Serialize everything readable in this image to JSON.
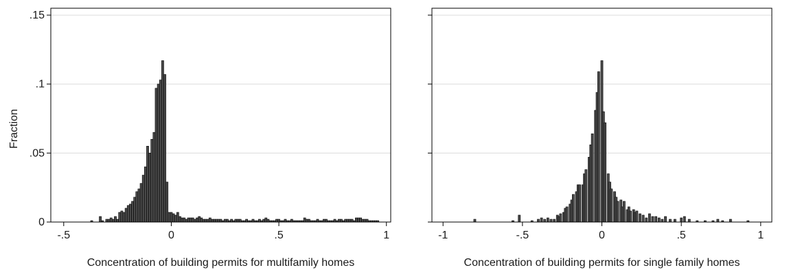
{
  "chart_data": [
    {
      "type": "bar",
      "xlabel": "Concentration of building permits for multifamily homes",
      "ylabel": "Fraction",
      "xlim": [
        -0.56,
        1.02
      ],
      "ylim": [
        0,
        0.155
      ],
      "xticks": [
        -0.5,
        0,
        0.5,
        1
      ],
      "xtick_labels": [
        "-.5",
        "0",
        ".5",
        "1"
      ],
      "yticks": [
        0,
        0.05,
        0.1,
        0.15
      ],
      "ytick_labels": [
        "0",
        ".05",
        ".1",
        ".15"
      ],
      "grid": "horizontal",
      "bin_width": 0.01,
      "bins": [
        [
          -0.37,
          0.001
        ],
        [
          -0.33,
          0.004
        ],
        [
          -0.32,
          0.001
        ],
        [
          -0.3,
          0.002
        ],
        [
          -0.29,
          0.002
        ],
        [
          -0.28,
          0.003
        ],
        [
          -0.27,
          0.002
        ],
        [
          -0.26,
          0.004
        ],
        [
          -0.25,
          0.002
        ],
        [
          -0.24,
          0.007
        ],
        [
          -0.23,
          0.008
        ],
        [
          -0.22,
          0.007
        ],
        [
          -0.21,
          0.01
        ],
        [
          -0.2,
          0.012
        ],
        [
          -0.19,
          0.013
        ],
        [
          -0.18,
          0.015
        ],
        [
          -0.17,
          0.018
        ],
        [
          -0.16,
          0.022
        ],
        [
          -0.15,
          0.024
        ],
        [
          -0.14,
          0.028
        ],
        [
          -0.13,
          0.034
        ],
        [
          -0.12,
          0.04
        ],
        [
          -0.11,
          0.055
        ],
        [
          -0.1,
          0.05
        ],
        [
          -0.09,
          0.06
        ],
        [
          -0.08,
          0.065
        ],
        [
          -0.07,
          0.097
        ],
        [
          -0.06,
          0.1
        ],
        [
          -0.05,
          0.103
        ],
        [
          -0.04,
          0.117
        ],
        [
          -0.03,
          0.107
        ],
        [
          -0.02,
          0.029
        ],
        [
          -0.01,
          0.007
        ],
        [
          0.0,
          0.007
        ],
        [
          0.01,
          0.006
        ],
        [
          0.02,
          0.005
        ],
        [
          0.03,
          0.007
        ],
        [
          0.04,
          0.004
        ],
        [
          0.05,
          0.003
        ],
        [
          0.06,
          0.003
        ],
        [
          0.07,
          0.002
        ],
        [
          0.08,
          0.003
        ],
        [
          0.09,
          0.003
        ],
        [
          0.1,
          0.003
        ],
        [
          0.11,
          0.002
        ],
        [
          0.12,
          0.003
        ],
        [
          0.13,
          0.004
        ],
        [
          0.14,
          0.003
        ],
        [
          0.15,
          0.002
        ],
        [
          0.16,
          0.002
        ],
        [
          0.17,
          0.002
        ],
        [
          0.18,
          0.003
        ],
        [
          0.19,
          0.002
        ],
        [
          0.2,
          0.002
        ],
        [
          0.21,
          0.002
        ],
        [
          0.22,
          0.002
        ],
        [
          0.23,
          0.002
        ],
        [
          0.24,
          0.001
        ],
        [
          0.25,
          0.002
        ],
        [
          0.26,
          0.002
        ],
        [
          0.27,
          0.001
        ],
        [
          0.28,
          0.002
        ],
        [
          0.29,
          0.001
        ],
        [
          0.3,
          0.002
        ],
        [
          0.31,
          0.002
        ],
        [
          0.32,
          0.002
        ],
        [
          0.33,
          0.001
        ],
        [
          0.34,
          0.001
        ],
        [
          0.35,
          0.002
        ],
        [
          0.36,
          0.001
        ],
        [
          0.37,
          0.001
        ],
        [
          0.38,
          0.002
        ],
        [
          0.39,
          0.001
        ],
        [
          0.4,
          0.001
        ],
        [
          0.41,
          0.002
        ],
        [
          0.42,
          0.001
        ],
        [
          0.43,
          0.002
        ],
        [
          0.44,
          0.003
        ],
        [
          0.45,
          0.002
        ],
        [
          0.46,
          0.001
        ],
        [
          0.47,
          0.001
        ],
        [
          0.48,
          0.001
        ],
        [
          0.49,
          0.002
        ],
        [
          0.5,
          0.002
        ],
        [
          0.51,
          0.001
        ],
        [
          0.52,
          0.001
        ],
        [
          0.53,
          0.002
        ],
        [
          0.54,
          0.001
        ],
        [
          0.55,
          0.001
        ],
        [
          0.56,
          0.002
        ],
        [
          0.57,
          0.001
        ],
        [
          0.58,
          0.001
        ],
        [
          0.59,
          0.001
        ],
        [
          0.6,
          0.001
        ],
        [
          0.61,
          0.001
        ],
        [
          0.62,
          0.003
        ],
        [
          0.63,
          0.002
        ],
        [
          0.64,
          0.002
        ],
        [
          0.65,
          0.001
        ],
        [
          0.66,
          0.001
        ],
        [
          0.67,
          0.001
        ],
        [
          0.68,
          0.002
        ],
        [
          0.69,
          0.001
        ],
        [
          0.7,
          0.001
        ],
        [
          0.71,
          0.002
        ],
        [
          0.72,
          0.002
        ],
        [
          0.73,
          0.001
        ],
        [
          0.74,
          0.001
        ],
        [
          0.75,
          0.001
        ],
        [
          0.76,
          0.002
        ],
        [
          0.77,
          0.001
        ],
        [
          0.78,
          0.002
        ],
        [
          0.79,
          0.002
        ],
        [
          0.8,
          0.001
        ],
        [
          0.81,
          0.002
        ],
        [
          0.82,
          0.002
        ],
        [
          0.83,
          0.002
        ],
        [
          0.84,
          0.002
        ],
        [
          0.85,
          0.001
        ],
        [
          0.86,
          0.003
        ],
        [
          0.87,
          0.003
        ],
        [
          0.88,
          0.003
        ],
        [
          0.89,
          0.002
        ],
        [
          0.9,
          0.002
        ],
        [
          0.91,
          0.002
        ],
        [
          0.92,
          0.001
        ],
        [
          0.93,
          0.001
        ],
        [
          0.94,
          0.001
        ],
        [
          0.95,
          0.001
        ],
        [
          0.96,
          0.001
        ]
      ]
    },
    {
      "type": "bar",
      "xlabel": "Concentration of building permits for single family homes",
      "ylabel": "",
      "xlim": [
        -1.07,
        1.07
      ],
      "ylim": [
        0,
        0.155
      ],
      "xticks": [
        -1,
        -0.5,
        0,
        0.5,
        1
      ],
      "xtick_labels": [
        "-1",
        "-.5",
        "0",
        ".5",
        "1"
      ],
      "yticks": [
        0,
        0.05,
        0.1,
        0.15
      ],
      "ytick_labels": [
        "",
        "",
        "",
        ""
      ],
      "grid": "horizontal",
      "bin_width": 0.0135,
      "bins": [
        [
          -0.8,
          0.002
        ],
        [
          -0.56,
          0.001
        ],
        [
          -0.52,
          0.005
        ],
        [
          -0.44,
          0.001
        ],
        [
          -0.4,
          0.002
        ],
        [
          -0.38,
          0.003
        ],
        [
          -0.36,
          0.002
        ],
        [
          -0.34,
          0.003
        ],
        [
          -0.32,
          0.002
        ],
        [
          -0.3,
          0.002
        ],
        [
          -0.28,
          0.005
        ],
        [
          -0.27,
          0.004
        ],
        [
          -0.26,
          0.006
        ],
        [
          -0.24,
          0.007
        ],
        [
          -0.23,
          0.01
        ],
        [
          -0.22,
          0.011
        ],
        [
          -0.2,
          0.013
        ],
        [
          -0.19,
          0.016
        ],
        [
          -0.18,
          0.02
        ],
        [
          -0.16,
          0.022
        ],
        [
          -0.15,
          0.027
        ],
        [
          -0.14,
          0.027
        ],
        [
          -0.12,
          0.027
        ],
        [
          -0.11,
          0.035
        ],
        [
          -0.1,
          0.038
        ],
        [
          -0.08,
          0.047
        ],
        [
          -0.07,
          0.056
        ],
        [
          -0.06,
          0.064
        ],
        [
          -0.04,
          0.081
        ],
        [
          -0.03,
          0.094
        ],
        [
          -0.02,
          0.109
        ],
        [
          0.0,
          0.117
        ],
        [
          0.01,
          0.08
        ],
        [
          0.02,
          0.072
        ],
        [
          0.04,
          0.035
        ],
        [
          0.05,
          0.029
        ],
        [
          0.06,
          0.024
        ],
        [
          0.08,
          0.022
        ],
        [
          0.09,
          0.018
        ],
        [
          0.1,
          0.015
        ],
        [
          0.12,
          0.016
        ],
        [
          0.13,
          0.011
        ],
        [
          0.14,
          0.015
        ],
        [
          0.16,
          0.009
        ],
        [
          0.17,
          0.011
        ],
        [
          0.18,
          0.008
        ],
        [
          0.2,
          0.009
        ],
        [
          0.21,
          0.007
        ],
        [
          0.22,
          0.008
        ],
        [
          0.24,
          0.006
        ],
        [
          0.26,
          0.005
        ],
        [
          0.28,
          0.003
        ],
        [
          0.3,
          0.006
        ],
        [
          0.32,
          0.004
        ],
        [
          0.34,
          0.004
        ],
        [
          0.36,
          0.003
        ],
        [
          0.38,
          0.002
        ],
        [
          0.4,
          0.004
        ],
        [
          0.43,
          0.002
        ],
        [
          0.46,
          0.002
        ],
        [
          0.5,
          0.003
        ],
        [
          0.52,
          0.004
        ],
        [
          0.55,
          0.002
        ],
        [
          0.6,
          0.001
        ],
        [
          0.65,
          0.001
        ],
        [
          0.7,
          0.001
        ],
        [
          0.73,
          0.002
        ],
        [
          0.76,
          0.001
        ],
        [
          0.81,
          0.002
        ],
        [
          0.92,
          0.001
        ]
      ]
    }
  ]
}
